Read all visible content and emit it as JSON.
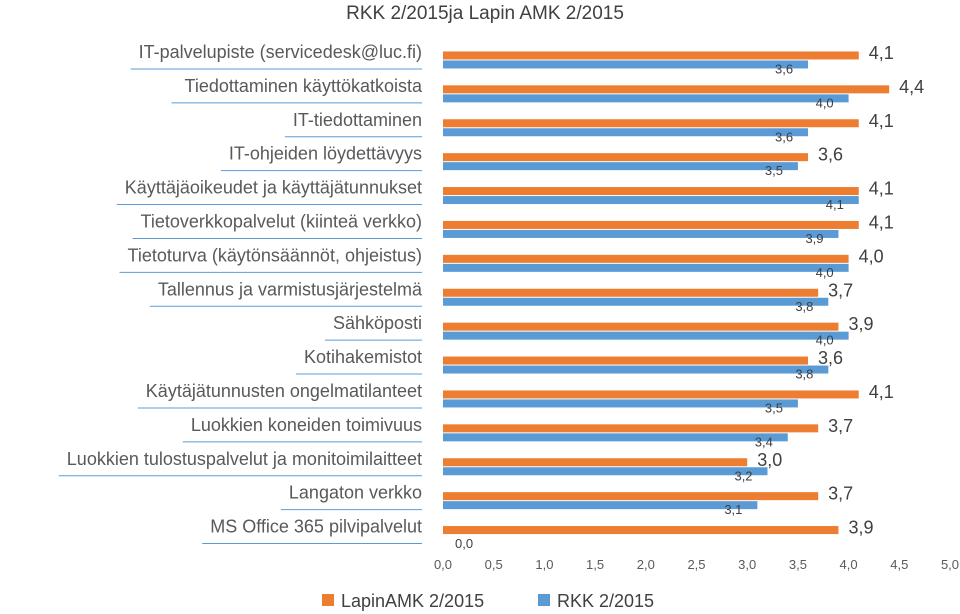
{
  "colors": {
    "lapin": "#ED7D31",
    "rkk": "#5B9BD5",
    "underline": "#5B9BD5"
  },
  "chart_data": {
    "type": "bar",
    "orientation": "horizontal",
    "title": "RKK  2/2015ja Lapin AMK 2/2015",
    "categories": [
      "IT-palvelupiste (servicedesk@luc.fi)",
      "Tiedottaminen  käyttökatkoista",
      "IT-tiedottaminen",
      "IT-ohjeiden löydettävyys",
      "Käyttäjäoikeudet ja käyttäjätunnukset",
      "Tietoverkkopalvelut (kiinteä verkko)",
      "Tietoturva (käytönsäännöt, ohjeistus)",
      "Tallennus ja varmistusjärjestelmä",
      "Sähköposti",
      "Kotihakemistot",
      "Käytäjätunnusten ongelmatilanteet",
      "Luokkien koneiden toimivuus",
      "Luokkien tulostuspalvelut ja monitoimilaitteet",
      "Langaton verkko",
      "MS Office 365 pilvipalvelut"
    ],
    "series": [
      {
        "name": "LapinAMK  2/2015",
        "values": [
          4.1,
          4.4,
          4.1,
          3.6,
          4.1,
          4.1,
          4.0,
          3.7,
          3.9,
          3.6,
          4.1,
          3.7,
          3.0,
          3.7,
          3.9
        ]
      },
      {
        "name": "RKK 2/2015",
        "values": [
          3.6,
          4.0,
          3.6,
          3.5,
          4.1,
          3.9,
          4.0,
          3.8,
          4.0,
          3.8,
          3.5,
          3.4,
          3.2,
          3.1,
          0.0
        ]
      }
    ],
    "labels_lapin": [
      "4,1",
      "4,4",
      "4,1",
      "3,6",
      "4,1",
      "4,1",
      "4,0",
      "3,7",
      "3,9",
      "3,6",
      "4,1",
      "3,7",
      "3,0",
      "3,7",
      "3,9"
    ],
    "labels_rkk": [
      "3,6",
      "4,0",
      "3,6",
      "3,5",
      "4,1",
      "3,9",
      "4,0",
      "3,8",
      "4,0",
      "3,8",
      "3,5",
      "3,4",
      "3,2",
      "3,1",
      "0,0"
    ],
    "xlim": [
      0,
      5
    ],
    "xticks": [
      "0,0",
      "0,5",
      "1,0",
      "1,5",
      "2,0",
      "2,5",
      "3,0",
      "3,5",
      "4,0",
      "4,5",
      "5,0"
    ],
    "grid": false,
    "legend_position": "bottom"
  }
}
